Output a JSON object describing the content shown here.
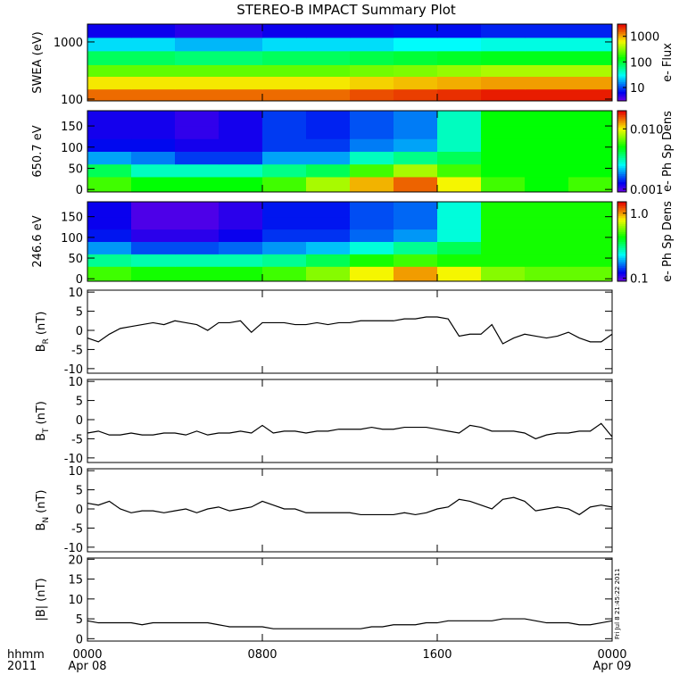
{
  "title": "STEREO-B IMPACT Summary Plot",
  "timestamp": "Fri Jul 8 21:45:22 2011",
  "x_axis": {
    "xlim": [
      0,
      24
    ],
    "xticks": [
      {
        "value": 0,
        "label": "0000"
      },
      {
        "value": 8,
        "label": "0800"
      },
      {
        "value": 16,
        "label": "1600"
      },
      {
        "value": 24,
        "label": "0000"
      }
    ],
    "date_labels": [
      {
        "value": 0,
        "label": "Apr 08"
      },
      {
        "value": 24,
        "label": "Apr 09"
      }
    ],
    "unit_label": "hhmm",
    "year_label": "2011"
  },
  "chart_data": [
    {
      "type": "heatmap",
      "ylabel": "SWEA (eV)",
      "log_y": true,
      "ylim": [
        93,
        2050
      ],
      "yticks": [
        100,
        1000
      ],
      "colorbar_label": "e- Flux",
      "clim": [
        3,
        3000
      ],
      "cticks": [
        10,
        100,
        1000
      ],
      "x_bins": [
        0,
        2,
        4,
        6,
        8,
        10,
        12,
        14,
        16,
        18,
        20,
        22,
        24
      ],
      "y_bins": [
        93,
        150,
        250,
        400,
        700,
        1200,
        2050
      ],
      "z": [
        [
          1500,
          1500,
          1500,
          1500,
          1500,
          1500,
          1800,
          2000,
          2200,
          2500,
          2500,
          2500
        ],
        [
          700,
          700,
          700,
          700,
          700,
          700,
          800,
          900,
          1000,
          1100,
          1100,
          1100
        ],
        [
          250,
          250,
          250,
          250,
          250,
          250,
          280,
          300,
          350,
          400,
          400,
          400
        ],
        [
          80,
          80,
          70,
          70,
          80,
          80,
          90,
          100,
          110,
          120,
          120,
          120
        ],
        [
          25,
          25,
          20,
          20,
          25,
          25,
          25,
          30,
          30,
          35,
          35,
          35
        ],
        [
          6,
          6,
          5,
          5,
          6,
          6,
          6,
          7,
          7,
          8,
          8,
          8
        ]
      ]
    },
    {
      "type": "heatmap",
      "ylabel": "650.7 eV",
      "log_y": false,
      "ylim": [
        -6,
        186
      ],
      "yticks": [
        0,
        50,
        100,
        150
      ],
      "colorbar_label": "e- Ph Sp Dens",
      "clim": [
        0.0009,
        0.02
      ],
      "cticks": [
        0.001,
        {
          "value": 0.01,
          "label": "0.010"
        }
      ],
      "x_bins": [
        0,
        2,
        4,
        6,
        8,
        10,
        12,
        14,
        16,
        18,
        20,
        22,
        24
      ],
      "y_bins": [
        -6,
        30,
        60,
        90,
        120,
        150,
        186
      ],
      "z": [
        [
          0.006,
          0.005,
          0.005,
          0.005,
          0.006,
          0.008,
          0.012,
          0.015,
          0.01,
          0.006,
          0.005,
          0.006
        ],
        [
          0.004,
          0.003,
          0.003,
          0.003,
          0.0035,
          0.004,
          0.006,
          0.008,
          0.006,
          0.005,
          0.005,
          0.005
        ],
        [
          0.002,
          0.0018,
          0.0015,
          0.0015,
          0.002,
          0.002,
          0.003,
          0.0035,
          0.004,
          0.005,
          0.005,
          0.005
        ],
        [
          0.0013,
          0.0013,
          0.0012,
          0.0012,
          0.0015,
          0.0015,
          0.0018,
          0.002,
          0.003,
          0.005,
          0.005,
          0.005
        ],
        [
          0.0012,
          0.0012,
          0.0011,
          0.0012,
          0.0015,
          0.0014,
          0.0016,
          0.0018,
          0.003,
          0.005,
          0.005,
          0.005
        ],
        [
          0.0012,
          0.0012,
          0.0011,
          0.0012,
          0.0015,
          0.0014,
          0.0016,
          0.0018,
          0.003,
          0.005,
          0.005,
          0.005
        ]
      ]
    },
    {
      "type": "heatmap",
      "ylabel": "246.6 eV",
      "log_y": false,
      "ylim": [
        -6,
        186
      ],
      "yticks": [
        0,
        50,
        100,
        150
      ],
      "colorbar_label": "e- Ph Sp Dens",
      "clim": [
        0.09,
        1.5
      ],
      "cticks": [
        0.1,
        {
          "value": 1,
          "label": "1.0"
        }
      ],
      "x_bins": [
        0,
        2,
        4,
        6,
        8,
        10,
        12,
        14,
        16,
        18,
        20,
        22,
        24
      ],
      "y_bins": [
        -6,
        30,
        60,
        90,
        120,
        150,
        186
      ],
      "z": [
        [
          0.5,
          0.45,
          0.45,
          0.45,
          0.5,
          0.6,
          0.8,
          1.0,
          0.8,
          0.6,
          0.55,
          0.55
        ],
        [
          0.3,
          0.28,
          0.28,
          0.28,
          0.3,
          0.35,
          0.45,
          0.5,
          0.45,
          0.45,
          0.45,
          0.45
        ],
        [
          0.18,
          0.15,
          0.15,
          0.16,
          0.18,
          0.2,
          0.25,
          0.3,
          0.35,
          0.45,
          0.45,
          0.45
        ],
        [
          0.13,
          0.11,
          0.11,
          0.12,
          0.14,
          0.14,
          0.16,
          0.18,
          0.25,
          0.45,
          0.45,
          0.45
        ],
        [
          0.12,
          0.1,
          0.1,
          0.11,
          0.13,
          0.13,
          0.15,
          0.16,
          0.25,
          0.45,
          0.45,
          0.45
        ],
        [
          0.12,
          0.1,
          0.1,
          0.11,
          0.13,
          0.13,
          0.15,
          0.16,
          0.25,
          0.45,
          0.45,
          0.45
        ]
      ]
    },
    {
      "type": "line",
      "ylabel_parts": [
        "B",
        "R",
        "(nT)"
      ],
      "ylim": [
        -11.2,
        10.5
      ],
      "yticks": [
        -10,
        -5,
        0,
        5,
        10
      ],
      "color": "#000000",
      "x": [
        0,
        0.5,
        1,
        1.5,
        2,
        2.5,
        3,
        3.5,
        4,
        4.5,
        5,
        5.5,
        6,
        6.5,
        7,
        7.5,
        8,
        8.5,
        9,
        9.5,
        10,
        10.5,
        11,
        11.5,
        12,
        12.5,
        13,
        13.5,
        14,
        14.5,
        15,
        15.5,
        16,
        16.5,
        17,
        17.5,
        18,
        18.5,
        19,
        19.5,
        20,
        20.5,
        21,
        21.5,
        22,
        22.5,
        23,
        23.5,
        24
      ],
      "values": [
        -2,
        -3,
        -1,
        0.5,
        1,
        1.5,
        2,
        1.5,
        2.5,
        2,
        1.5,
        0,
        2,
        2,
        2.5,
        -0.5,
        2,
        2,
        2,
        1.5,
        1.5,
        2,
        1.5,
        2,
        2,
        2.5,
        2.5,
        2.5,
        2.5,
        3,
        3,
        3.5,
        3.5,
        3,
        -1.5,
        -1,
        -1,
        1.5,
        -3.5,
        -2,
        -1,
        -1.5,
        -2,
        -1.5,
        -0.5,
        -2,
        -3,
        -3,
        -1
      ]
    },
    {
      "type": "line",
      "ylabel_parts": [
        "B",
        "T",
        "(nT)"
      ],
      "ylim": [
        -11.2,
        10.5
      ],
      "yticks": [
        -10,
        -5,
        0,
        5,
        10
      ],
      "color": "#000000",
      "x": [
        0,
        0.5,
        1,
        1.5,
        2,
        2.5,
        3,
        3.5,
        4,
        4.5,
        5,
        5.5,
        6,
        6.5,
        7,
        7.5,
        8,
        8.5,
        9,
        9.5,
        10,
        10.5,
        11,
        11.5,
        12,
        12.5,
        13,
        13.5,
        14,
        14.5,
        15,
        15.5,
        16,
        16.5,
        17,
        17.5,
        18,
        18.5,
        19,
        19.5,
        20,
        20.5,
        21,
        21.5,
        22,
        22.5,
        23,
        23.5,
        24
      ],
      "values": [
        -3.5,
        -3,
        -4,
        -4,
        -3.5,
        -4,
        -4,
        -3.5,
        -3.5,
        -4,
        -3,
        -4,
        -3.5,
        -3.5,
        -3,
        -3.5,
        -1.5,
        -3.5,
        -3,
        -3,
        -3.5,
        -3,
        -3,
        -2.5,
        -2.5,
        -2.5,
        -2,
        -2.5,
        -2.5,
        -2,
        -2,
        -2,
        -2.5,
        -3,
        -3.5,
        -1.5,
        -2,
        -3,
        -3,
        -3,
        -3.5,
        -5,
        -4,
        -3.5,
        -3.5,
        -3,
        -3,
        -1,
        -4.5
      ]
    },
    {
      "type": "line",
      "ylabel_parts": [
        "B",
        "N",
        "(nT)"
      ],
      "ylim": [
        -11.2,
        10.5
      ],
      "yticks": [
        -10,
        -5,
        0,
        5,
        10
      ],
      "color": "#000000",
      "x": [
        0,
        0.5,
        1,
        1.5,
        2,
        2.5,
        3,
        3.5,
        4,
        4.5,
        5,
        5.5,
        6,
        6.5,
        7,
        7.5,
        8,
        8.5,
        9,
        9.5,
        10,
        10.5,
        11,
        11.5,
        12,
        12.5,
        13,
        13.5,
        14,
        14.5,
        15,
        15.5,
        16,
        16.5,
        17,
        17.5,
        18,
        18.5,
        19,
        19.5,
        20,
        20.5,
        21,
        21.5,
        22,
        22.5,
        23,
        23.5,
        24
      ],
      "values": [
        1.5,
        1,
        2,
        0,
        -1,
        -0.5,
        -0.5,
        -1,
        -0.5,
        0,
        -1,
        0,
        0.5,
        -0.5,
        0,
        0.5,
        2,
        1,
        0,
        0,
        -1,
        -1,
        -1,
        -1,
        -1,
        -1.5,
        -1.5,
        -1.5,
        -1.5,
        -1,
        -1.5,
        -1,
        0,
        0.5,
        2.5,
        2,
        1,
        0,
        2.5,
        3,
        2,
        -0.5,
        0,
        0.5,
        0,
        -1.5,
        0.5,
        1,
        0.5
      ]
    },
    {
      "type": "line",
      "ylabel_parts": [
        "|B|",
        "",
        "(nT)"
      ],
      "ylim": [
        -0.6,
        20.3
      ],
      "yticks": [
        0,
        5,
        10,
        15,
        20
      ],
      "color": "#000000",
      "x": [
        0,
        0.5,
        1,
        1.5,
        2,
        2.5,
        3,
        3.5,
        4,
        4.5,
        5,
        5.5,
        6,
        6.5,
        7,
        7.5,
        8,
        8.5,
        9,
        9.5,
        10,
        10.5,
        11,
        11.5,
        12,
        12.5,
        13,
        13.5,
        14,
        14.5,
        15,
        15.5,
        16,
        16.5,
        17,
        17.5,
        18,
        18.5,
        19,
        19.5,
        20,
        20.5,
        21,
        21.5,
        22,
        22.5,
        23,
        23.5,
        24
      ],
      "values": [
        4.5,
        4,
        4,
        4,
        4,
        3.5,
        4,
        4,
        4,
        4,
        4,
        4,
        3.5,
        3,
        3,
        3,
        3,
        2.5,
        2.5,
        2.5,
        2.5,
        2.5,
        2.5,
        2.5,
        2.5,
        2.5,
        3,
        3,
        3.5,
        3.5,
        3.5,
        4,
        4,
        4.5,
        4.5,
        4.5,
        4.5,
        4.5,
        5,
        5,
        5,
        4.5,
        4,
        4,
        4,
        3.5,
        3.5,
        4,
        4.5
      ]
    }
  ]
}
